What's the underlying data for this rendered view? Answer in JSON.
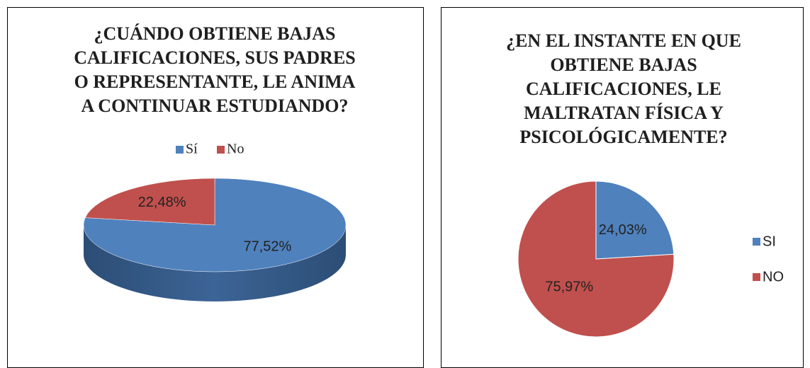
{
  "chart_data": [
    {
      "type": "pie",
      "title": "¿CUÁNDO OBTIENE BAJAS CALIFICACIONES, SUS PADRES O REPRESENTANTE, LE ANIMA A CONTINUAR ESTUDIANDO?",
      "categories": [
        "Sí",
        "No"
      ],
      "values": [
        77.52,
        22.48
      ],
      "value_labels": [
        "77,52%",
        "22,48%"
      ],
      "colors": [
        "#4f81bd",
        "#c0504d"
      ],
      "legend": "top",
      "three_d": true
    },
    {
      "type": "pie",
      "title": "¿EN EL INSTANTE EN QUE OBTIENE BAJAS CALIFICACIONES, LE MALTRATAN FÍSICA Y PSICOLÓGICAMENTE?",
      "categories": [
        "SI",
        "NO"
      ],
      "values": [
        24.03,
        75.97
      ],
      "value_labels": [
        "24,03%",
        "75,97%"
      ],
      "colors": [
        "#4f81bd",
        "#c0504d"
      ],
      "legend": "right",
      "three_d": false
    }
  ]
}
